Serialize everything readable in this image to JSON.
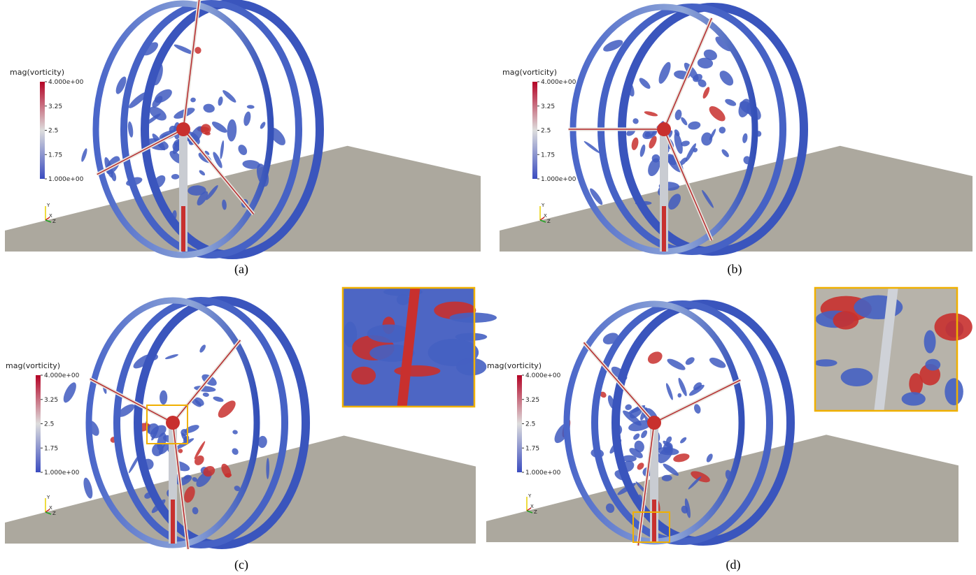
{
  "panels": [
    {
      "label": "(a)",
      "colorbar": {
        "title": "mag(vorticity)",
        "ticks": [
          "4.000e+00",
          "3.25",
          "2.5",
          "1.75",
          "1.000e+00"
        ]
      },
      "axes": [
        "Y",
        "X",
        "Z"
      ]
    },
    {
      "label": "(b)",
      "colorbar": {
        "title": "mag(vorticity)",
        "ticks": [
          "4.000e+00",
          "3.25",
          "2.5",
          "1.75",
          "1.000e+00"
        ]
      },
      "axes": [
        "Y",
        "X",
        "Z"
      ]
    },
    {
      "label": "(c)",
      "colorbar": {
        "title": "mag(vorticity)",
        "ticks": [
          "4.000e+00",
          "3.25",
          "2.5",
          "1.75",
          "1.000e+00"
        ]
      },
      "axes": [
        "Y",
        "X",
        "Z"
      ]
    },
    {
      "label": "(d)",
      "colorbar": {
        "title": "mag(vorticity)",
        "ticks": [
          "4.000e+00",
          "3.25",
          "2.5",
          "1.75",
          "1.000e+00"
        ]
      },
      "axes": [
        "Y",
        "X",
        "Z"
      ]
    }
  ]
}
